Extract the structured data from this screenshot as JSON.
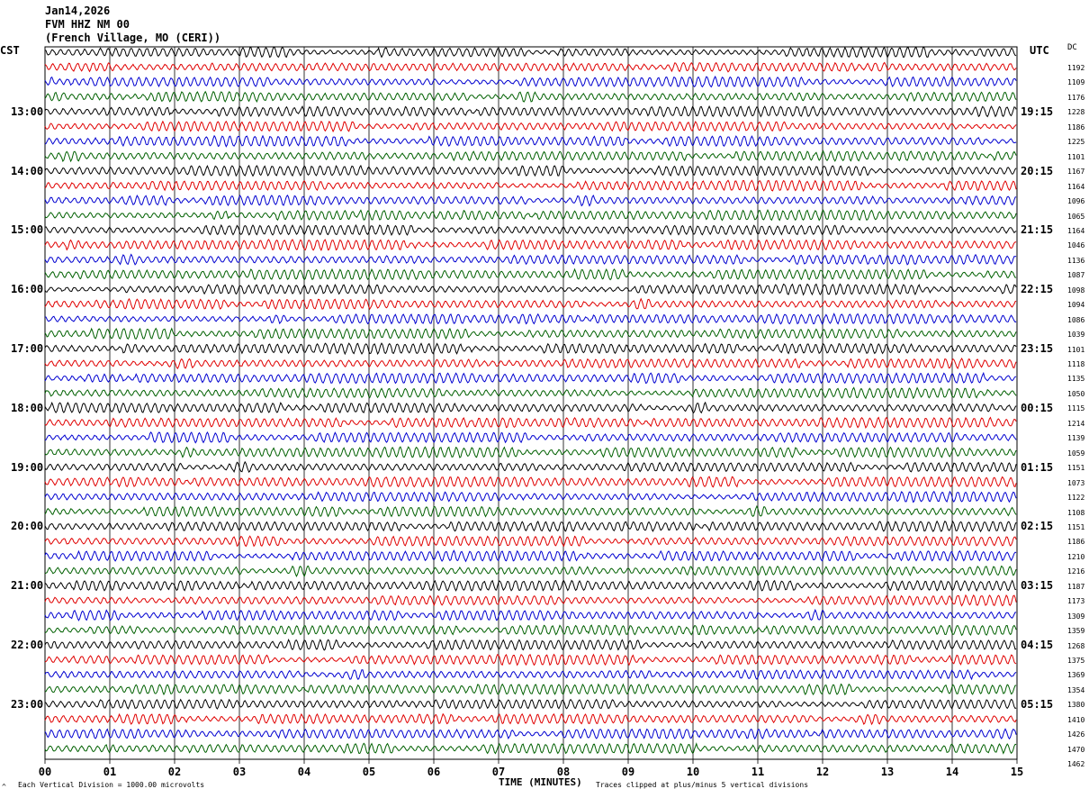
{
  "header": {
    "date": "Jan14,2026",
    "station": "FVM HHZ NM 00",
    "location": "(French Village, MO (CERI))"
  },
  "axis": {
    "left_title": "CST",
    "right_title": "UTC",
    "right_extra": "DC",
    "xlabel": "TIME (MINUTES)",
    "left_note": "Each Vertical Division = 1000.00 microvolts",
    "left_note_marker": "^",
    "right_note": "Traces clipped at plus/minus 5 vertical divisions"
  },
  "chart_data": {
    "type": "line",
    "title": "FVM HHZ NM 00",
    "xlabel": "TIME (MINUTES)",
    "xlim": [
      0,
      15
    ],
    "x_ticks": [
      "00",
      "01",
      "02",
      "03",
      "04",
      "05",
      "06",
      "07",
      "08",
      "09",
      "10",
      "11",
      "12",
      "13",
      "14",
      "15"
    ],
    "trace_colors": [
      "#000000",
      "#e00000",
      "#0000d0",
      "#006000"
    ],
    "left_time_labels": [
      "13:00",
      "14:00",
      "15:00",
      "16:00",
      "17:00",
      "18:00",
      "19:00",
      "20:00",
      "21:00",
      "22:00",
      "23:00"
    ],
    "right_time_labels": [
      "19:15",
      "20:15",
      "21:15",
      "22:15",
      "23:15",
      "00:15",
      "01:15",
      "02:15",
      "03:15",
      "04:15",
      "05:15"
    ],
    "dc_offsets": [
      1192,
      1109,
      1176,
      1228,
      1186,
      1225,
      1101,
      1167,
      1164,
      1096,
      1065,
      1164,
      1046,
      1136,
      1087,
      1098,
      1094,
      1086,
      1039,
      1101,
      1118,
      1135,
      1050,
      1115,
      1214,
      1139,
      1059,
      1151,
      1073,
      1122,
      1108,
      1151,
      1186,
      1210,
      1216,
      1187,
      1173,
      1309,
      1359,
      1268,
      1375,
      1369,
      1354,
      1380,
      1410,
      1426,
      1470,
      1462
    ],
    "grid": true
  }
}
